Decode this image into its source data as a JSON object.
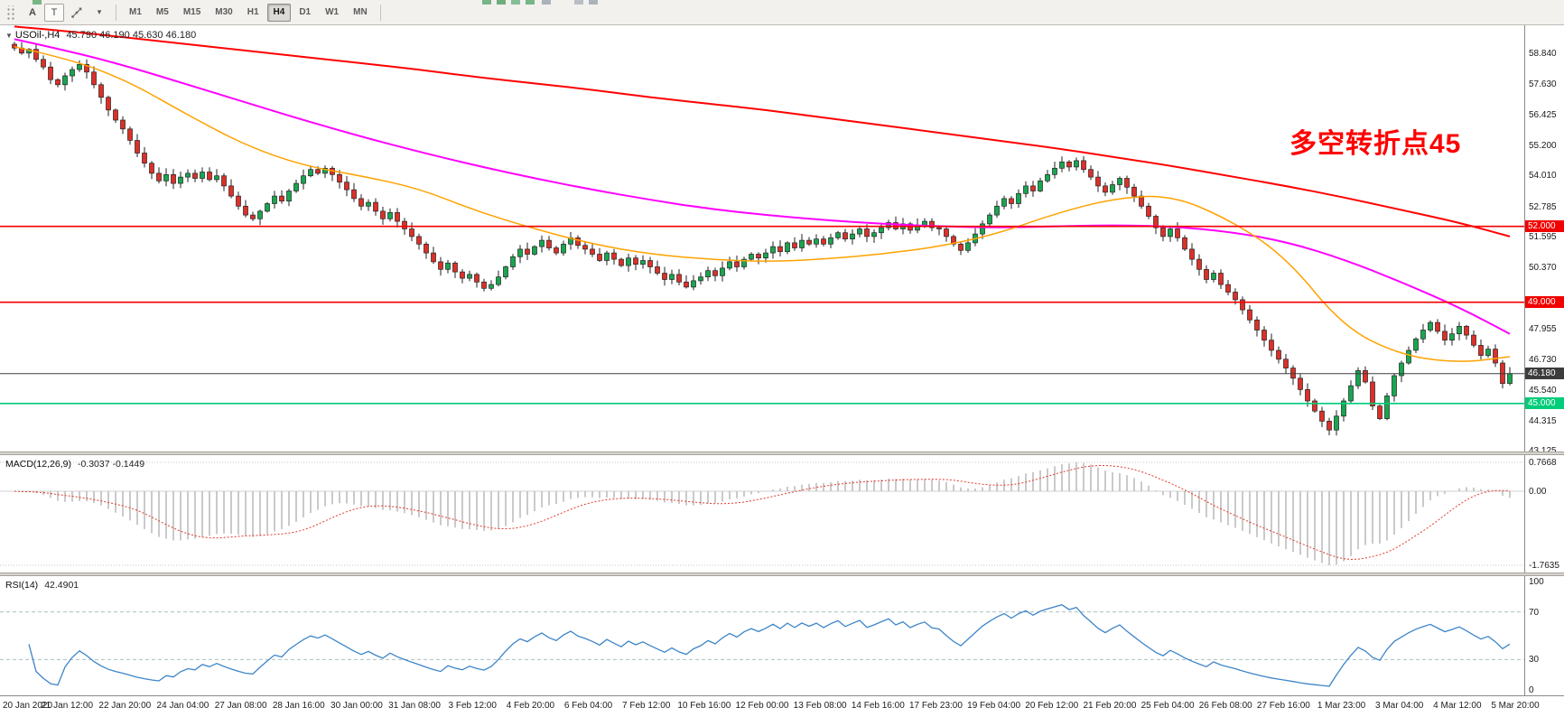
{
  "toolbar": {
    "tools": {
      "a_label": "A",
      "t_label": "T"
    },
    "timeframes": [
      "M1",
      "M5",
      "M15",
      "M30",
      "H1",
      "H4",
      "D1",
      "W1",
      "MN"
    ],
    "active_timeframe": "H4"
  },
  "chart_header": {
    "symbol": "USOil-,H4",
    "ohlc": "45.790 46.190 45.630 46.180"
  },
  "annotation": {
    "text": "多空转折点45",
    "color": "#fe0000"
  },
  "chart_data": {
    "type": "candlestick",
    "symbol": "USOil",
    "timeframe": "H4",
    "last_ohlc": {
      "open": 45.79,
      "high": 46.19,
      "low": 45.63,
      "close": 46.18
    },
    "y_axis": {
      "min": 43.1,
      "max": 59.95,
      "tick_labels": [
        {
          "text": "58.840",
          "value": 58.84
        },
        {
          "text": "57.630",
          "value": 57.63
        },
        {
          "text": "56.425",
          "value": 56.425
        },
        {
          "text": "55.200",
          "value": 55.2
        },
        {
          "text": "54.010",
          "value": 54.01
        },
        {
          "text": "52.785",
          "value": 52.785
        },
        {
          "text": "51.595",
          "value": 51.595
        },
        {
          "text": "50.370",
          "value": 50.37
        },
        {
          "text": "47.955",
          "value": 47.955
        },
        {
          "text": "46.730",
          "value": 46.73
        },
        {
          "text": "45.540",
          "value": 45.54
        },
        {
          "text": "44.315",
          "value": 44.315
        },
        {
          "text": "43.125",
          "value": 43.125
        }
      ]
    },
    "price_lines": [
      {
        "label": "52.000",
        "value": 52.0,
        "color": "#f20000",
        "kind": "resistance"
      },
      {
        "label": "49.000",
        "value": 49.0,
        "color": "#f20000",
        "kind": "resistance"
      },
      {
        "label": "45.000",
        "value": 45.0,
        "color": "#00cc7a",
        "kind": "support"
      },
      {
        "label": "46.180",
        "value": 46.18,
        "color": "#3c3c3c",
        "kind": "current-price"
      }
    ],
    "candles": {
      "first_open": 59.2,
      "up_color": "#18a650",
      "down_color": "#dc3029",
      "outline": "#222222",
      "closes": [
        59.05,
        58.85,
        59.0,
        58.6,
        58.3,
        57.8,
        57.6,
        57.95,
        58.2,
        58.4,
        58.1,
        57.6,
        57.1,
        56.6,
        56.2,
        55.85,
        55.4,
        54.9,
        54.5,
        54.1,
        53.8,
        54.05,
        53.7,
        53.95,
        54.1,
        53.9,
        54.15,
        53.85,
        54.0,
        53.6,
        53.2,
        52.8,
        52.45,
        52.3,
        52.6,
        52.9,
        53.2,
        53.0,
        53.4,
        53.7,
        54.0,
        54.25,
        54.1,
        54.3,
        54.05,
        53.75,
        53.45,
        53.1,
        52.8,
        52.95,
        52.6,
        52.3,
        52.55,
        52.2,
        51.9,
        51.6,
        51.3,
        50.95,
        50.6,
        50.3,
        50.55,
        50.2,
        49.95,
        50.1,
        49.8,
        49.55,
        49.7,
        50.0,
        50.4,
        50.8,
        51.1,
        50.9,
        51.2,
        51.45,
        51.15,
        50.95,
        51.3,
        51.55,
        51.25,
        51.1,
        50.9,
        50.65,
        50.95,
        50.7,
        50.45,
        50.75,
        50.5,
        50.65,
        50.4,
        50.15,
        49.9,
        50.1,
        49.8,
        49.6,
        49.85,
        50.0,
        50.25,
        50.05,
        50.35,
        50.6,
        50.4,
        50.7,
        50.9,
        50.75,
        50.95,
        51.2,
        51.0,
        51.35,
        51.15,
        51.45,
        51.3,
        51.5,
        51.3,
        51.55,
        51.75,
        51.5,
        51.7,
        51.9,
        51.6,
        51.75,
        51.95,
        52.15,
        51.9,
        52.1,
        51.85,
        52.05,
        52.2,
        51.95,
        51.9,
        51.6,
        51.3,
        51.05,
        51.35,
        51.7,
        52.1,
        52.45,
        52.8,
        53.1,
        52.9,
        53.3,
        53.6,
        53.4,
        53.8,
        54.05,
        54.3,
        54.55,
        54.35,
        54.6,
        54.25,
        53.95,
        53.6,
        53.35,
        53.65,
        53.9,
        53.55,
        53.2,
        52.8,
        52.4,
        51.95,
        51.6,
        51.9,
        51.55,
        51.1,
        50.7,
        50.3,
        49.9,
        50.15,
        49.7,
        49.4,
        49.1,
        48.7,
        48.3,
        47.9,
        47.5,
        47.1,
        46.75,
        46.4,
        46.0,
        45.55,
        45.1,
        44.7,
        44.3,
        43.95,
        44.5,
        45.1,
        45.7,
        46.3,
        45.85,
        44.9,
        44.4,
        45.3,
        46.1,
        46.6,
        47.1,
        47.55,
        47.9,
        48.2,
        47.85,
        47.5,
        47.75,
        48.05,
        47.7,
        47.3,
        46.9,
        47.15,
        46.6,
        45.79,
        46.18
      ]
    },
    "moving_averages": [
      {
        "name": "ma-slow-red",
        "color": "#ff0000",
        "width": 2,
        "values": [
          59.9,
          59.7,
          59.45,
          59.2,
          58.95,
          58.7,
          58.45,
          58.2,
          57.9,
          57.65,
          57.4,
          57.1,
          56.85,
          56.6,
          56.3,
          56.0,
          55.7,
          55.4,
          55.1,
          54.75,
          54.4,
          54.0,
          53.6,
          53.15,
          52.65,
          52.15,
          51.6
        ]
      },
      {
        "name": "ma-mid-magenta",
        "color": "#ff00ff",
        "width": 2,
        "values": [
          59.4,
          58.9,
          58.3,
          57.6,
          56.9,
          56.2,
          55.55,
          54.95,
          54.4,
          53.9,
          53.45,
          53.05,
          52.7,
          52.45,
          52.25,
          52.1,
          52.0,
          51.95,
          52.0,
          52.05,
          52.0,
          51.8,
          51.4,
          50.7,
          49.8,
          48.8,
          47.75
        ]
      },
      {
        "name": "ma-fast-orange",
        "color": "#ffa200",
        "width": 1.5,
        "values": [
          59.1,
          58.6,
          57.7,
          56.4,
          55.2,
          54.4,
          54.0,
          53.5,
          52.6,
          51.9,
          51.3,
          50.9,
          50.7,
          50.6,
          50.7,
          50.9,
          51.2,
          51.7,
          52.5,
          53.1,
          53.25,
          52.3,
          50.8,
          48.0,
          46.9,
          46.6,
          46.85
        ]
      }
    ],
    "macd": {
      "label": "MACD(12,26,9)",
      "current_values": "-0.3037 -0.1449",
      "fast": 12,
      "slow": 26,
      "signal_period": 9,
      "scale_labels": [
        "0.7668",
        "0.00",
        "-1.7635"
      ],
      "histogram_color": "#bcbcbc",
      "signal_color": "#e23a2e"
    },
    "rsi": {
      "label": "RSI(14)",
      "current_value": "42.4901",
      "period": 14,
      "levels": [
        70,
        30
      ],
      "scale_labels": [
        {
          "text": "100",
          "value": 100
        },
        {
          "text": "70",
          "value": 70
        },
        {
          "text": "30",
          "value": 30
        },
        {
          "text": "0",
          "value": 0
        }
      ],
      "line_color": "#3d85c8"
    },
    "x_labels": [
      "20 Jan 2020",
      "21 Jan 12:00",
      "22 Jan 20:00",
      "24 Jan 04:00",
      "27 Jan 08:00",
      "28 Jan 16:00",
      "30 Jan 00:00",
      "31 Jan 08:00",
      "3 Feb 12:00",
      "4 Feb 20:00",
      "6 Feb 04:00",
      "7 Feb 12:00",
      "10 Feb 16:00",
      "12 Feb 00:00",
      "13 Feb 08:00",
      "14 Feb 16:00",
      "17 Feb 23:00",
      "19 Feb 04:00",
      "20 Feb 12:00",
      "21 Feb 20:00",
      "25 Feb 04:00",
      "26 Feb 08:00",
      "27 Feb 16:00",
      "1 Mar 23:00",
      "3 Mar 04:00",
      "4 Mar 12:00",
      "5 Mar 20:00"
    ]
  }
}
